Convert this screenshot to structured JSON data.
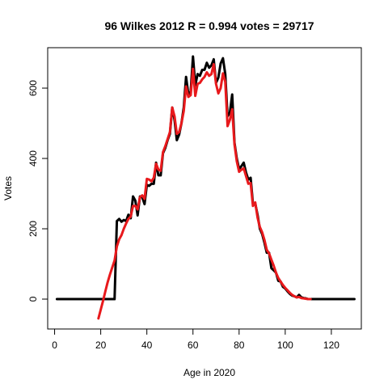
{
  "chart_data": {
    "type": "line",
    "title": "96 Wilkes 2012 R = 0.994 votes = 29717",
    "xlabel": "Age in 2020",
    "ylabel": "Votes",
    "xlim": [
      -3,
      133
    ],
    "ylim": [
      -85,
      715
    ],
    "xticks": [
      0,
      20,
      40,
      60,
      80,
      100,
      120
    ],
    "yticks": [
      0,
      200,
      400,
      600
    ],
    "grid": false,
    "legend": "none",
    "series": [
      {
        "color": "#000000",
        "points": [
          [
            1,
            0
          ],
          [
            26,
            0
          ],
          [
            27,
            222
          ],
          [
            28,
            228
          ],
          [
            29,
            220
          ],
          [
            30,
            225
          ],
          [
            31,
            222
          ],
          [
            32,
            240
          ],
          [
            33,
            230
          ],
          [
            34,
            292
          ],
          [
            35,
            280
          ],
          [
            36,
            238
          ],
          [
            37,
            292
          ],
          [
            38,
            290
          ],
          [
            39,
            270
          ],
          [
            40,
            325
          ],
          [
            41,
            322
          ],
          [
            42,
            328
          ],
          [
            43,
            328
          ],
          [
            44,
            388
          ],
          [
            45,
            352
          ],
          [
            46,
            352
          ],
          [
            47,
            415
          ],
          [
            48,
            430
          ],
          [
            49,
            452
          ],
          [
            50,
            470
          ],
          [
            51,
            545
          ],
          [
            52,
            510
          ],
          [
            53,
            452
          ],
          [
            54,
            468
          ],
          [
            55,
            500
          ],
          [
            56,
            545
          ],
          [
            57,
            632
          ],
          [
            58,
            582
          ],
          [
            59,
            590
          ],
          [
            60,
            690
          ],
          [
            61,
            608
          ],
          [
            62,
            640
          ],
          [
            63,
            635
          ],
          [
            64,
            652
          ],
          [
            65,
            652
          ],
          [
            66,
            672
          ],
          [
            67,
            658
          ],
          [
            68,
            665
          ],
          [
            69,
            682
          ],
          [
            70,
            615
          ],
          [
            71,
            630
          ],
          [
            72,
            670
          ],
          [
            73,
            685
          ],
          [
            74,
            640
          ],
          [
            75,
            520
          ],
          [
            76,
            530
          ],
          [
            77,
            582
          ],
          [
            78,
            445
          ],
          [
            79,
            400
          ],
          [
            80,
            370
          ],
          [
            81,
            378
          ],
          [
            82,
            388
          ],
          [
            83,
            360
          ],
          [
            84,
            340
          ],
          [
            85,
            345
          ],
          [
            86,
            272
          ],
          [
            87,
            272
          ],
          [
            88,
            240
          ],
          [
            89,
            200
          ],
          [
            90,
            185
          ],
          [
            91,
            160
          ],
          [
            92,
            132
          ],
          [
            93,
            132
          ],
          [
            94,
            88
          ],
          [
            95,
            82
          ],
          [
            96,
            75
          ],
          [
            97,
            52
          ],
          [
            98,
            50
          ],
          [
            99,
            35
          ],
          [
            100,
            30
          ],
          [
            101,
            22
          ],
          [
            102,
            15
          ],
          [
            103,
            10
          ],
          [
            104,
            8
          ],
          [
            105,
            5
          ],
          [
            106,
            12
          ],
          [
            107,
            5
          ],
          [
            108,
            3
          ],
          [
            109,
            2
          ],
          [
            110,
            0
          ],
          [
            130,
            0
          ]
        ]
      },
      {
        "color": "#e8191c",
        "points": [
          [
            19,
            -55
          ],
          [
            20,
            -30
          ],
          [
            21,
            -5
          ],
          [
            22,
            22
          ],
          [
            23,
            48
          ],
          [
            24,
            70
          ],
          [
            25,
            90
          ],
          [
            26,
            110
          ],
          [
            27,
            150
          ],
          [
            28,
            170
          ],
          [
            29,
            182
          ],
          [
            30,
            200
          ],
          [
            31,
            215
          ],
          [
            32,
            228
          ],
          [
            33,
            235
          ],
          [
            34,
            265
          ],
          [
            35,
            265
          ],
          [
            36,
            255
          ],
          [
            37,
            290
          ],
          [
            38,
            295
          ],
          [
            39,
            285
          ],
          [
            40,
            342
          ],
          [
            41,
            340
          ],
          [
            42,
            335
          ],
          [
            43,
            345
          ],
          [
            44,
            385
          ],
          [
            45,
            368
          ],
          [
            46,
            365
          ],
          [
            47,
            418
          ],
          [
            48,
            435
          ],
          [
            49,
            455
          ],
          [
            50,
            475
          ],
          [
            51,
            545
          ],
          [
            52,
            520
          ],
          [
            53,
            470
          ],
          [
            54,
            475
          ],
          [
            55,
            500
          ],
          [
            56,
            535
          ],
          [
            57,
            605
          ],
          [
            58,
            575
          ],
          [
            59,
            580
          ],
          [
            60,
            655
          ],
          [
            61,
            578
          ],
          [
            62,
            612
          ],
          [
            63,
            615
          ],
          [
            64,
            625
          ],
          [
            65,
            632
          ],
          [
            66,
            645
          ],
          [
            67,
            635
          ],
          [
            68,
            640
          ],
          [
            69,
            668
          ],
          [
            70,
            612
          ],
          [
            71,
            585
          ],
          [
            72,
            600
          ],
          [
            73,
            642
          ],
          [
            74,
            618
          ],
          [
            75,
            492
          ],
          [
            76,
            510
          ],
          [
            77,
            540
          ],
          [
            78,
            440
          ],
          [
            79,
            392
          ],
          [
            80,
            362
          ],
          [
            81,
            368
          ],
          [
            82,
            372
          ],
          [
            83,
            350
          ],
          [
            84,
            328
          ],
          [
            85,
            330
          ],
          [
            86,
            265
          ],
          [
            87,
            275
          ],
          [
            88,
            232
          ],
          [
            89,
            205
          ],
          [
            90,
            190
          ],
          [
            91,
            168
          ],
          [
            92,
            140
          ],
          [
            93,
            130
          ],
          [
            94,
            112
          ],
          [
            95,
            95
          ],
          [
            96,
            75
          ],
          [
            97,
            60
          ],
          [
            98,
            50
          ],
          [
            99,
            40
          ],
          [
            100,
            32
          ],
          [
            101,
            25
          ],
          [
            102,
            18
          ],
          [
            103,
            12
          ],
          [
            104,
            8
          ],
          [
            105,
            5
          ],
          [
            106,
            6
          ],
          [
            107,
            3
          ],
          [
            108,
            2
          ],
          [
            109,
            1
          ],
          [
            110,
            0
          ],
          [
            111,
            0
          ]
        ]
      }
    ]
  }
}
